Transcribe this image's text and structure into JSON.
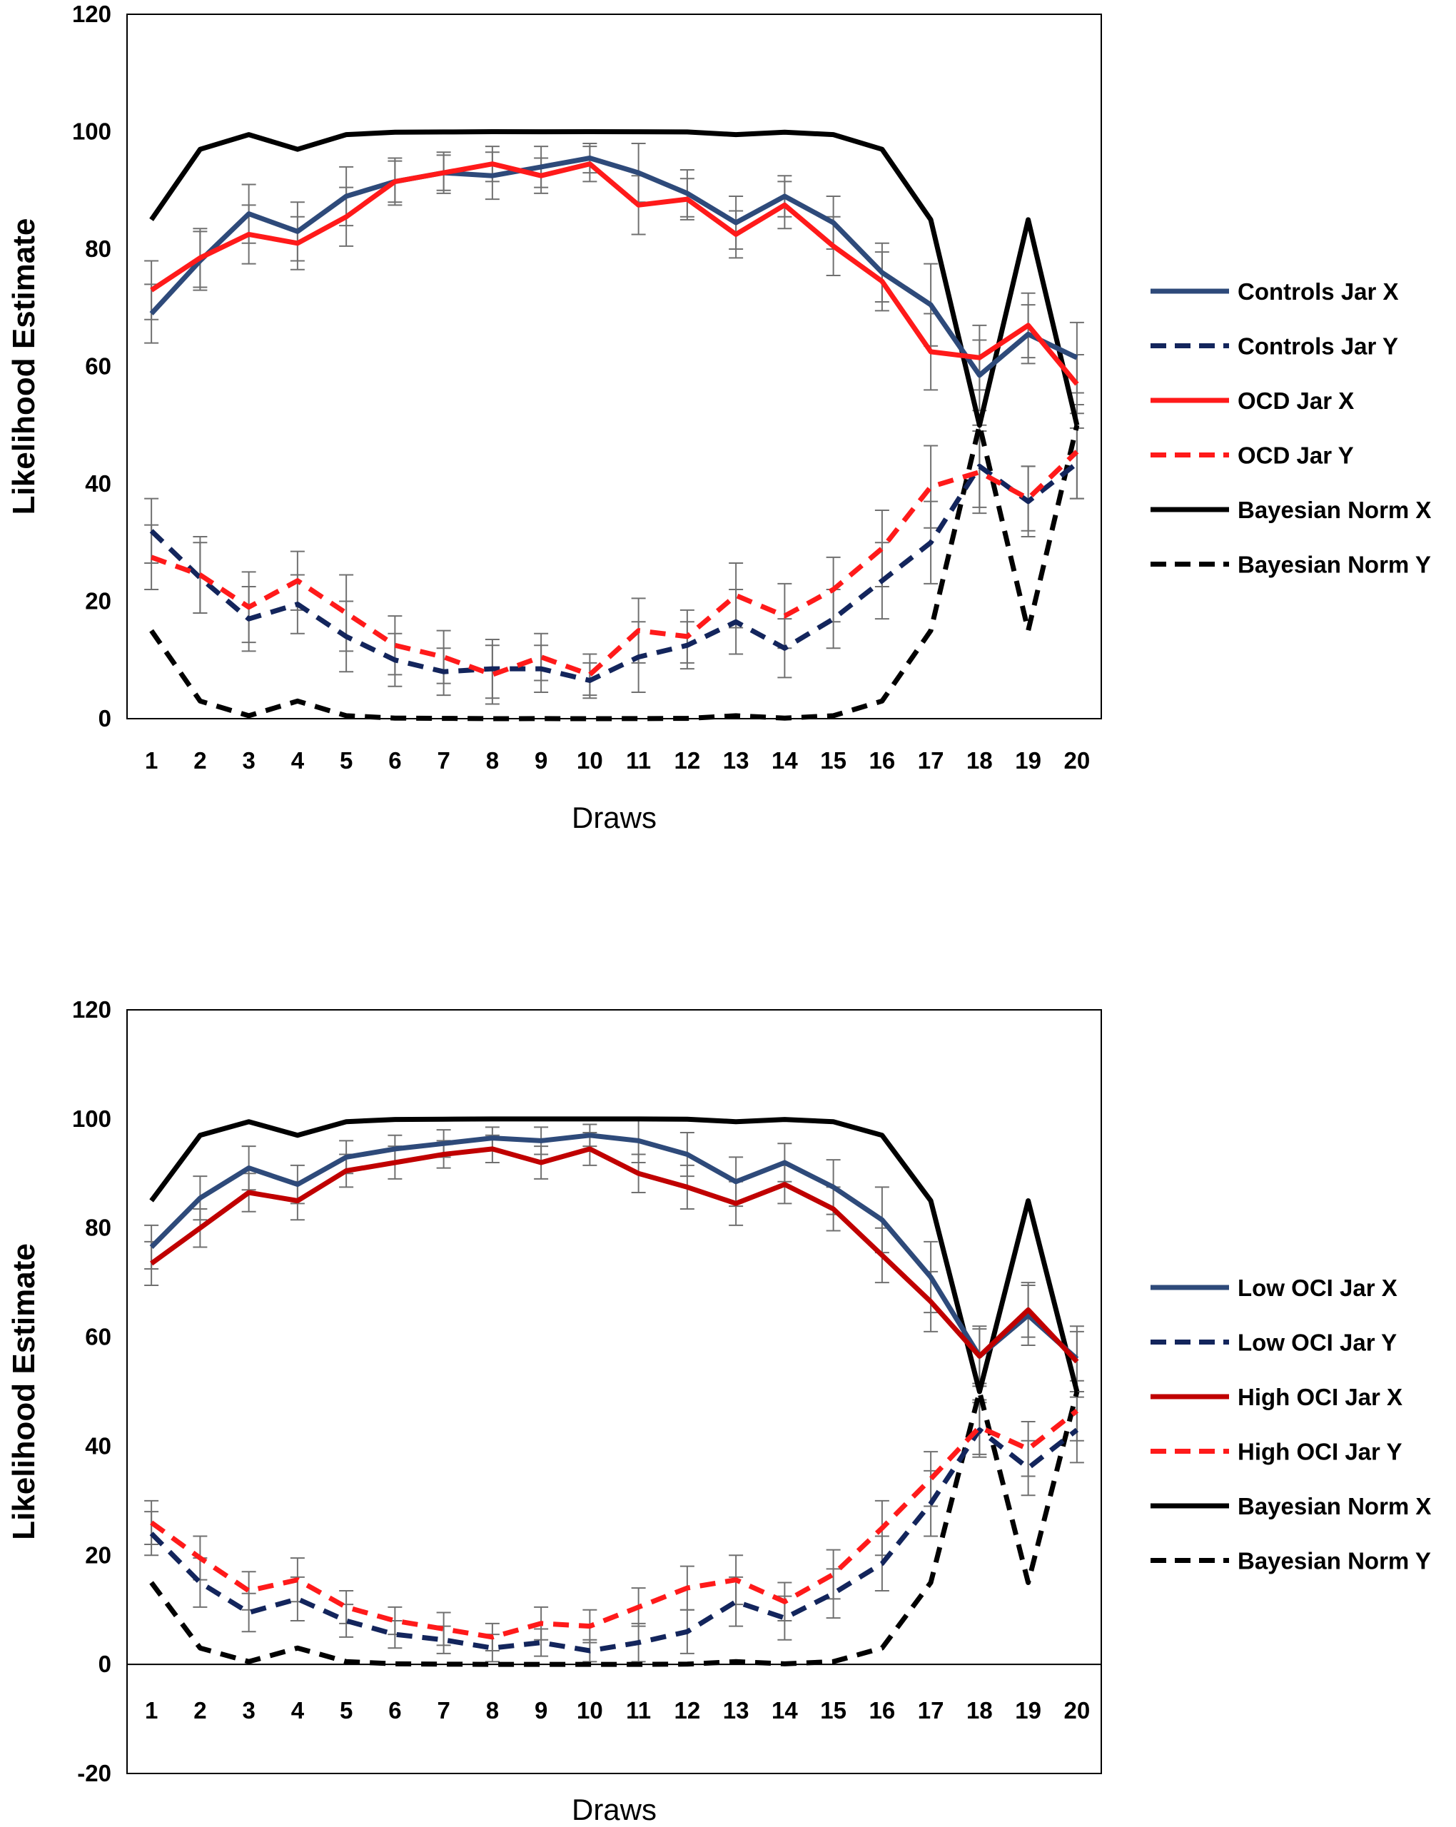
{
  "chart_data": [
    {
      "type": "line",
      "xlabel": "Draws",
      "ylabel": "Likelihood Estimate",
      "ylim": [
        0,
        120
      ],
      "yticks": [
        0,
        20,
        40,
        60,
        80,
        100,
        120
      ],
      "categories": [
        "1",
        "2",
        "3",
        "4",
        "5",
        "6",
        "7",
        "8",
        "9",
        "10",
        "11",
        "12",
        "13",
        "14",
        "15",
        "16",
        "17",
        "18",
        "19",
        "20"
      ],
      "legend_position": "right",
      "series": [
        {
          "name": "Controls Jar X",
          "color": "#2e4a7a",
          "dash": "solid",
          "values": [
            69,
            78,
            86,
            83,
            89,
            91.5,
            93,
            92.5,
            94,
            95.5,
            93,
            89.5,
            84.5,
            89,
            84.5,
            76,
            70.5,
            58.5,
            65.5,
            61.5
          ],
          "errors": [
            5,
            5,
            5,
            5,
            5,
            4,
            3.5,
            4,
            3.5,
            2.5,
            5,
            4,
            4.5,
            3.5,
            4.5,
            5,
            7,
            6,
            5,
            6
          ]
        },
        {
          "name": "Controls Jar Y",
          "color": "#13255c",
          "dash": "dashed",
          "values": [
            32,
            24,
            17,
            19.5,
            14,
            10,
            8,
            8.5,
            8.5,
            6.5,
            10.5,
            12.5,
            16.5,
            12,
            17,
            23.5,
            30,
            43,
            37,
            43.5
          ],
          "errors": [
            5.5,
            6,
            5.5,
            5,
            6,
            4.5,
            4,
            5,
            4,
            3,
            6,
            4,
            5.5,
            5,
            5,
            6.5,
            7,
            7,
            6,
            6
          ]
        },
        {
          "name": "OCD Jar X",
          "color": "#ff1a1a",
          "dash": "solid",
          "values": [
            73,
            78.5,
            82.5,
            81,
            85.5,
            91.5,
            93,
            94.5,
            92.5,
            94.5,
            87.5,
            88.5,
            82.5,
            87.5,
            80.5,
            74.5,
            62.5,
            61.5,
            67,
            57
          ],
          "errors": [
            5,
            5,
            5,
            4.5,
            5,
            3.5,
            3,
            3,
            3,
            3,
            5,
            3.5,
            4,
            4,
            5,
            5,
            6.5,
            5.5,
            5.5,
            5
          ]
        },
        {
          "name": "OCD Jar Y",
          "color": "#ff1a1a",
          "dash": "dashed",
          "values": [
            27.5,
            24.5,
            19,
            23.5,
            18,
            12.5,
            10.5,
            7.5,
            10.5,
            7.5,
            15,
            14,
            21,
            17.5,
            22,
            29,
            39.5,
            42,
            37.5,
            45.5
          ],
          "errors": [
            5.5,
            6.5,
            6,
            5,
            6.5,
            5,
            4.5,
            5,
            4,
            3.5,
            5.5,
            4.5,
            5.5,
            5.5,
            5.5,
            6.5,
            7,
            7,
            5.5,
            8
          ]
        },
        {
          "name": "Bayesian Norm X",
          "color": "#000000",
          "dash": "solid",
          "values": [
            85,
            97,
            99.5,
            97,
            99.5,
            99.9,
            99.95,
            100,
            99.99,
            100,
            99.99,
            99.95,
            99.5,
            99.9,
            99.5,
            97,
            85,
            50,
            85,
            50
          ],
          "errors": null
        },
        {
          "name": "Bayesian Norm Y",
          "color": "#000000",
          "dash": "dashed",
          "values": [
            15,
            3,
            0.5,
            3,
            0.5,
            0.1,
            0.05,
            0,
            0.01,
            0,
            0.01,
            0.05,
            0.5,
            0.1,
            0.5,
            3,
            15,
            50,
            15,
            50
          ],
          "errors": null
        }
      ]
    },
    {
      "type": "line",
      "xlabel": "Draws",
      "ylabel": "Likelihood Estimate",
      "ylim": [
        -20,
        120
      ],
      "yticks": [
        -20,
        0,
        20,
        40,
        60,
        80,
        100,
        120
      ],
      "categories": [
        "1",
        "2",
        "3",
        "4",
        "5",
        "6",
        "7",
        "8",
        "9",
        "10",
        "11",
        "12",
        "13",
        "14",
        "15",
        "16",
        "17",
        "18",
        "19",
        "20"
      ],
      "legend_position": "right",
      "series": [
        {
          "name": "Low OCI Jar X",
          "color": "#2e4a7a",
          "dash": "solid",
          "values": [
            76.5,
            85.5,
            91,
            88,
            93,
            94.5,
            95.5,
            96.5,
            96,
            97,
            96,
            93.5,
            88.5,
            92,
            87.5,
            81.5,
            71,
            56.5,
            64,
            56
          ],
          "errors": [
            4,
            4,
            4,
            3.5,
            3,
            2.5,
            2.5,
            2,
            2.5,
            2,
            4,
            4,
            4.5,
            3.5,
            5,
            6,
            6.5,
            5.5,
            5.5,
            6
          ]
        },
        {
          "name": "Low OCI Jar Y",
          "color": "#13255c",
          "dash": "dashed",
          "values": [
            24,
            15,
            9.5,
            12,
            8,
            5.5,
            4.5,
            3,
            4,
            2.5,
            4,
            6,
            11.5,
            8.5,
            13,
            18.5,
            29.5,
            43,
            36,
            43
          ],
          "errors": [
            4,
            4.5,
            3.5,
            4,
            3,
            2.5,
            2.5,
            2.5,
            2.5,
            2,
            3.5,
            4,
            4.5,
            4,
            4.5,
            5,
            6,
            5,
            5,
            6
          ]
        },
        {
          "name": "High OCI Jar X",
          "color": "#c00000",
          "dash": "solid",
          "values": [
            73.5,
            80,
            86.5,
            85,
            90.5,
            92,
            93.5,
            94.5,
            92,
            94.5,
            90,
            87.5,
            84.5,
            88,
            83.5,
            75,
            66.5,
            56.5,
            65,
            55.5
          ],
          "errors": [
            4,
            3.5,
            3.5,
            3.5,
            3,
            3,
            2.5,
            2.5,
            3,
            3,
            3.5,
            4,
            4,
            3.5,
            4,
            5,
            5.5,
            5,
            5,
            5.5
          ]
        },
        {
          "name": "High OCI Jar Y",
          "color": "#ff1a1a",
          "dash": "dashed",
          "values": [
            26,
            19.5,
            13.5,
            15.5,
            10.5,
            8,
            6.5,
            5,
            7.5,
            7,
            10.5,
            14,
            15.5,
            11.5,
            16.5,
            25,
            34,
            43.5,
            39.5,
            46.5
          ],
          "errors": [
            4,
            4,
            3.5,
            4,
            3,
            2.5,
            3,
            2.5,
            3,
            3,
            3.5,
            4,
            4.5,
            3.5,
            4.5,
            5,
            5,
            5,
            5,
            5.5
          ]
        },
        {
          "name": "Bayesian Norm X",
          "color": "#000000",
          "dash": "solid",
          "values": [
            85,
            97,
            99.5,
            97,
            99.5,
            99.9,
            99.95,
            100,
            99.99,
            100,
            99.99,
            99.95,
            99.5,
            99.9,
            99.5,
            97,
            85,
            50,
            85,
            50
          ],
          "errors": null
        },
        {
          "name": "Bayesian Norm Y",
          "color": "#000000",
          "dash": "dashed",
          "values": [
            15,
            3,
            0.5,
            3,
            0.5,
            0.1,
            0.05,
            0,
            0.01,
            0,
            0.01,
            0.05,
            0.5,
            0.1,
            0.5,
            3,
            15,
            50,
            15,
            50
          ],
          "errors": null
        }
      ]
    }
  ]
}
